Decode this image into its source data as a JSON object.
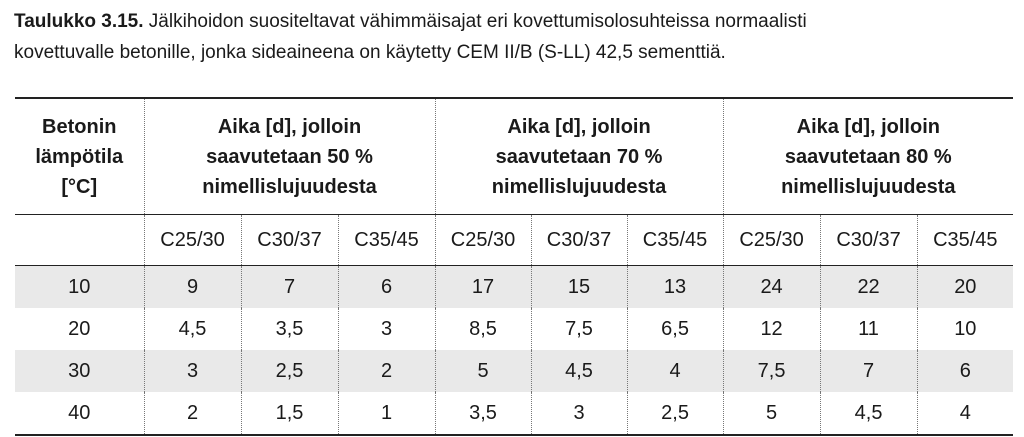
{
  "caption": {
    "label": "Taulukko 3.15.",
    "line1": " Jälkihoidon suositeltavat vähimmäisajat eri kovettumisolosuhteissa normaalisti",
    "line2": "kovettuvalle betonille, jonka sideaineena on käytetty CEM II/B (S-LL) 42,5 sementtiä."
  },
  "table": {
    "header": {
      "col0": [
        "Betonin",
        "lämpötila",
        "[°C]"
      ],
      "group1": [
        "Aika [d], jolloin",
        "saavutetaan 50 %",
        "nimellislujuudesta"
      ],
      "group2": [
        "Aika [d], jolloin",
        "saavutetaan 70 %",
        "nimellislujuudesta"
      ],
      "group3": [
        "Aika [d], jolloin",
        "saavutetaan 80 %",
        "nimellislujuudesta"
      ]
    },
    "subheaders": [
      "C25/30",
      "C30/37",
      "C35/45",
      "C25/30",
      "C30/37",
      "C35/45",
      "C25/30",
      "C30/37",
      "C35/45"
    ],
    "rows": [
      [
        "10",
        "9",
        "7",
        "6",
        "17",
        "15",
        "13",
        "24",
        "22",
        "20"
      ],
      [
        "20",
        "4,5",
        "3,5",
        "3",
        "8,5",
        "7,5",
        "6,5",
        "12",
        "11",
        "10"
      ],
      [
        "30",
        "3",
        "2,5",
        "2",
        "5",
        "4,5",
        "4",
        "7,5",
        "7",
        "6"
      ],
      [
        "40",
        "2",
        "1,5",
        "1",
        "3,5",
        "3",
        "2,5",
        "5",
        "4,5",
        "4"
      ]
    ]
  }
}
